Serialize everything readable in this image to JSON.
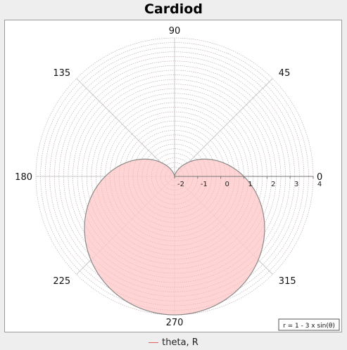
{
  "chart_data": {
    "type": "polar",
    "title": "Cardiod",
    "formula": "r = 1 - 3 x sin(θ)",
    "angle_ticks": [
      {
        "deg": 0,
        "label": "0"
      },
      {
        "deg": 45,
        "label": "45"
      },
      {
        "deg": 90,
        "label": "90"
      },
      {
        "deg": 135,
        "label": "135"
      },
      {
        "deg": 180,
        "label": "180"
      },
      {
        "deg": 225,
        "label": "225"
      },
      {
        "deg": 270,
        "label": "270"
      },
      {
        "deg": 315,
        "label": "315"
      }
    ],
    "radial_range": [
      -2,
      4
    ],
    "radial_ticks": [
      "-2",
      "-1",
      "0",
      "1",
      "2",
      "3",
      "4"
    ],
    "series": [
      {
        "name": "theta, R",
        "function": "1 - 3*sin(theta)",
        "color": "#e06060",
        "fill": "#ffcccc"
      }
    ],
    "grid": true,
    "legend_position": "bottom"
  }
}
